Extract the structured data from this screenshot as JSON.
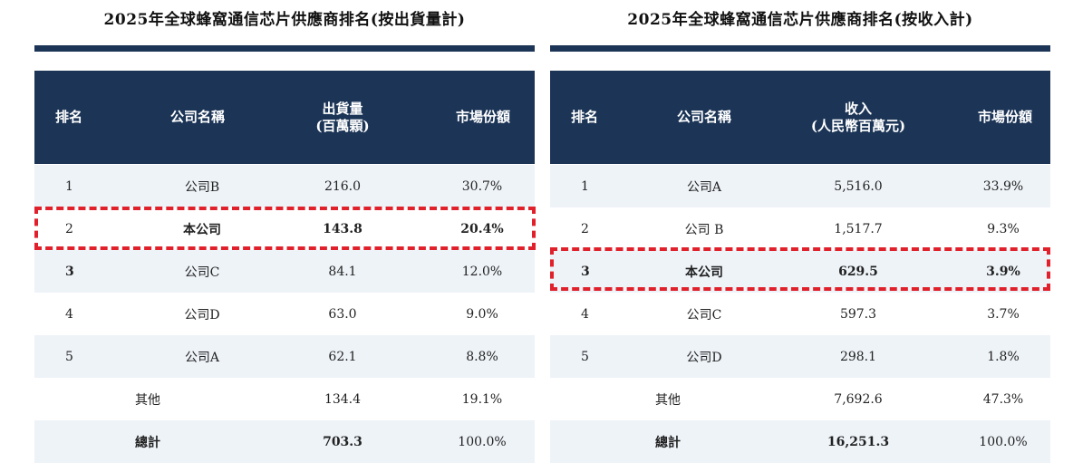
{
  "left_table": {
    "title": "2025年全球蜂窩通信芯片供應商排名(按出貨量計)",
    "headers": [
      "排名",
      "公司名稱",
      "出貨量\n(百萬顆)",
      "市場份額"
    ],
    "rows": [
      {
        "rank": "1",
        "company": "公司B",
        "value": "216.0",
        "share": "30.7%"
      },
      {
        "rank": "2",
        "company": "本公司",
        "value": "143.8",
        "share": "20.4%"
      },
      {
        "rank": "3",
        "company": "公司C",
        "value": "84.1",
        "share": "12.0%"
      },
      {
        "rank": "4",
        "company": "公司D",
        "value": "63.0",
        "share": "9.0%"
      },
      {
        "rank": "5",
        "company": "公司A",
        "value": "62.1",
        "share": "8.8%"
      },
      {
        "rank": "",
        "company": "其他",
        "value": "134.4",
        "share": "19.1%"
      },
      {
        "rank": "",
        "company": "總計",
        "value": "703.3",
        "share": "100.0%"
      }
    ]
  },
  "right_table": {
    "title": "2025年全球蜂窩通信芯片供應商排名(按收入計)",
    "headers": [
      "排名",
      "公司名稱",
      "收入\n(人民幣百萬元)",
      "市場份額"
    ],
    "rows": [
      {
        "rank": "1",
        "company": "公司A",
        "value": "5,516.0",
        "share": "33.9%"
      },
      {
        "rank": "2",
        "company": "公司 B",
        "value": "1,517.7",
        "share": "9.3%"
      },
      {
        "rank": "3",
        "company": "本公司",
        "value": "629.5",
        "share": "3.9%"
      },
      {
        "rank": "4",
        "company": "公司C",
        "value": "597.3",
        "share": "3.7%"
      },
      {
        "rank": "5",
        "company": "公司D",
        "value": "298.1",
        "share": "1.8%"
      },
      {
        "rank": "",
        "company": "其他",
        "value": "7,692.6",
        "share": "47.3%"
      },
      {
        "rank": "",
        "company": "總計",
        "value": "16,251.3",
        "share": "100.0%"
      }
    ]
  },
  "colors": {
    "header_bg": "#1c3557",
    "row_shade": "#eef3f8",
    "highlight": "#e0202a"
  }
}
